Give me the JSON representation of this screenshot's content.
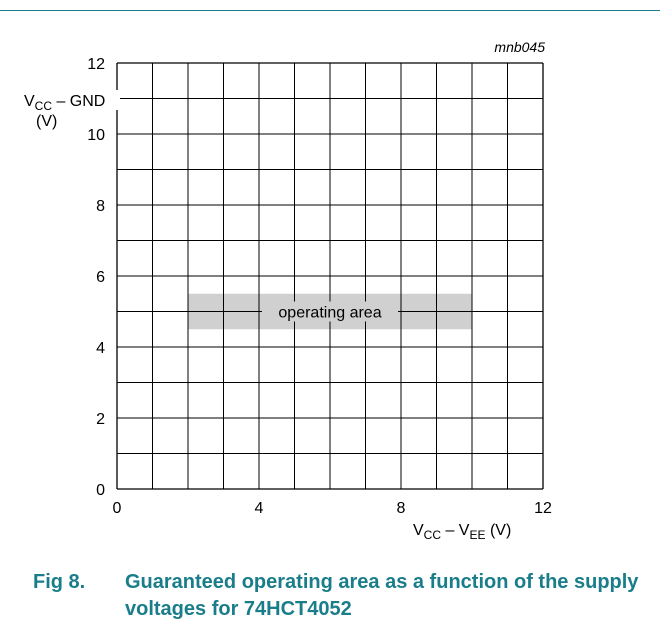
{
  "colors": {
    "rule": "#1a7d8a",
    "caption": "#1a7d8a",
    "grid": "#000000",
    "area_fill": "#d0d0d0",
    "text": "#000000"
  },
  "figure_id": "mnb045",
  "caption": {
    "number": "Fig 8.",
    "text": "Guaranteed operating area as a function of the supply voltages for 74HCT4052"
  },
  "chart_data": {
    "type": "area",
    "title": "",
    "xlabel": {
      "main": "V",
      "sub1": "CC",
      "mid": " – V",
      "sub2": "EE",
      "unit": " (V)"
    },
    "ylabel": {
      "main": "V",
      "sub1": "CC",
      "mid": " – GND",
      "unit": "(V)"
    },
    "xlim": [
      0,
      12
    ],
    "ylim": [
      0,
      12
    ],
    "x_ticks": [
      0,
      4,
      8,
      12
    ],
    "y_ticks": [
      0,
      2,
      4,
      6,
      8,
      10,
      12
    ],
    "grid": true,
    "grid_step": 1,
    "regions": [
      {
        "label": "operating area",
        "x": [
          2,
          10
        ],
        "y": [
          4.5,
          5.5
        ]
      }
    ]
  }
}
